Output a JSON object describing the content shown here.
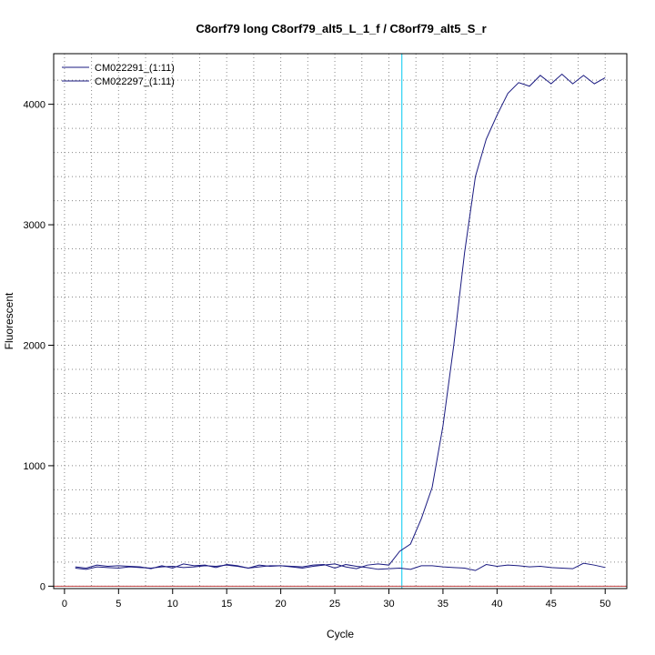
{
  "chart_data": {
    "type": "line",
    "title": "C8orf79 long C8orf79_alt5_L_1_f / C8orf79_alt5_S_r",
    "xlabel": "Cycle",
    "ylabel": "Fluorescent",
    "xlim": [
      -1,
      52
    ],
    "ylim": [
      -20,
      4420
    ],
    "x_ticks": [
      0,
      5,
      10,
      15,
      20,
      25,
      30,
      35,
      40,
      45,
      50
    ],
    "y_ticks": [
      0,
      1000,
      2000,
      3000,
      4000
    ],
    "grid": "dotted",
    "legend_position": "top-left",
    "threshold_cycle": 31.2,
    "baseline_y": 0,
    "colors": {
      "series": "#1a1a80",
      "threshold": "#00c8f0",
      "baseline": "#c04040",
      "grid": "#888888"
    },
    "x": [
      1,
      2,
      3,
      4,
      5,
      6,
      7,
      8,
      9,
      10,
      11,
      12,
      13,
      14,
      15,
      16,
      17,
      18,
      19,
      20,
      21,
      22,
      23,
      24,
      25,
      26,
      27,
      28,
      29,
      30,
      31,
      32,
      33,
      34,
      35,
      36,
      37,
      38,
      39,
      40,
      41,
      42,
      43,
      44,
      45,
      46,
      47,
      48,
      49,
      50
    ],
    "series": [
      {
        "name": "CM022291_(1:11)",
        "values": [
          150,
          140,
          160,
          155,
          150,
          160,
          155,
          150,
          160,
          165,
          155,
          160,
          170,
          165,
          175,
          165,
          150,
          160,
          170,
          170,
          160,
          150,
          165,
          175,
          185,
          160,
          145,
          175,
          185,
          175,
          290,
          350,
          560,
          820,
          1330,
          2000,
          2770,
          3400,
          3710,
          3910,
          4090,
          4180,
          4150,
          4240,
          4170,
          4250,
          4170,
          4240,
          4170,
          4220
        ]
      },
      {
        "name": "CM022297_(1:11)",
        "values": [
          160,
          150,
          175,
          165,
          170,
          165,
          160,
          145,
          170,
          150,
          185,
          170,
          175,
          155,
          180,
          170,
          150,
          175,
          165,
          170,
          165,
          160,
          175,
          180,
          150,
          180,
          165,
          155,
          140,
          145,
          150,
          140,
          170,
          170,
          160,
          155,
          150,
          130,
          180,
          165,
          175,
          170,
          160,
          165,
          155,
          150,
          145,
          190,
          175,
          155
        ]
      }
    ]
  }
}
